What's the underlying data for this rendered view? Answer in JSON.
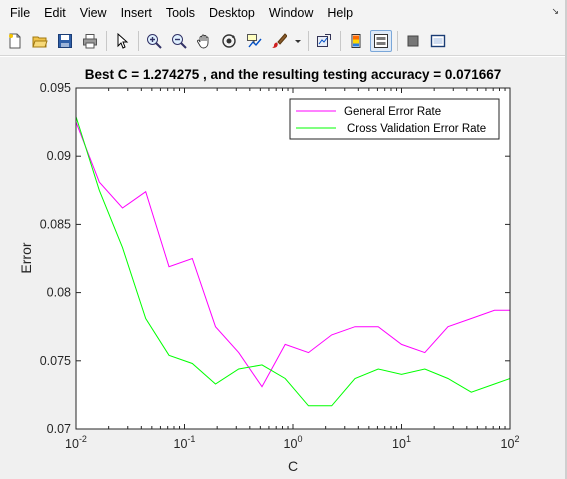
{
  "menu": {
    "items": [
      "File",
      "Edit",
      "View",
      "Insert",
      "Tools",
      "Desktop",
      "Window",
      "Help"
    ]
  },
  "toolbar": {
    "icons": [
      "new-figure-icon",
      "open-file-icon",
      "save-icon",
      "print-icon",
      "pointer-icon",
      "zoom-in-icon",
      "zoom-out-icon",
      "pan-icon",
      "rotate-3d-icon",
      "data-cursor-icon",
      "brush-icon",
      "brush-dropdown-icon",
      "link-plot-icon",
      "insert-colorbar-icon",
      "insert-legend-icon",
      "hide-plot-tools-icon",
      "show-plot-tools-icon"
    ]
  },
  "colors": {
    "general": "#ff00ff",
    "cross_validation": "#00ff00"
  },
  "chart_data": {
    "type": "line",
    "title": "Best C = 1.274275 , and the resulting testing accuracy = 0.071667",
    "xlabel": "C",
    "ylabel": "Error",
    "xscale": "log",
    "xlim": [
      0.01,
      100
    ],
    "ylim": [
      0.07,
      0.095
    ],
    "grid": false,
    "legend_position": "top-right",
    "x_ticks": [
      {
        "base": "10",
        "exp": "-2"
      },
      {
        "base": "10",
        "exp": "-1"
      },
      {
        "base": "10",
        "exp": "0"
      },
      {
        "base": "10",
        "exp": "1"
      },
      {
        "base": "10",
        "exp": "2"
      }
    ],
    "y_ticks": [
      "0.095",
      "0.09",
      "0.085",
      "0.08",
      "0.075",
      "0.07"
    ],
    "y_tick_values": [
      0.095,
      0.09,
      0.085,
      0.08,
      0.075,
      0.07
    ],
    "x": [
      0.01,
      0.0164,
      0.0268,
      0.0439,
      0.072,
      0.1179,
      0.1931,
      0.3162,
      0.5179,
      0.8483,
      1.3895,
      2.2758,
      3.7276,
      6.1054,
      10,
      16.379,
      26.827,
      43.94,
      71.969,
      100
    ],
    "series": [
      {
        "name": "General Error Rate",
        "color": "#ff00ff",
        "values": [
          0.0925,
          0.0881,
          0.0862,
          0.0874,
          0.0819,
          0.0825,
          0.0775,
          0.0756,
          0.0731,
          0.0762,
          0.0756,
          0.0769,
          0.0775,
          0.0775,
          0.0762,
          0.0756,
          0.0775,
          0.0781,
          0.0787,
          0.0787
        ]
      },
      {
        "name": "Cross Validation Error Rate",
        "color": "#00ff00",
        "values": [
          0.0929,
          0.0875,
          0.0833,
          0.0781,
          0.0754,
          0.0748,
          0.0733,
          0.0744,
          0.0747,
          0.0737,
          0.0717,
          0.0717,
          0.0737,
          0.0744,
          0.074,
          0.0744,
          0.0737,
          0.0727,
          0.0733,
          0.0737
        ]
      }
    ]
  }
}
